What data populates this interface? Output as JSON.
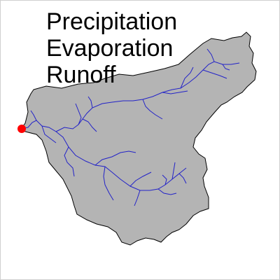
{
  "title_lines": [
    "Precipitation",
    "Evaporation",
    "Runoff"
  ],
  "colors": {
    "background": "#ffffff",
    "basin_fill": "#b4b4b4",
    "basin_outline": "#000000",
    "river": "#2323c8",
    "outlet": "#ff0000"
  },
  "icons": {
    "outlet_marker": "outlet-point-icon"
  }
}
